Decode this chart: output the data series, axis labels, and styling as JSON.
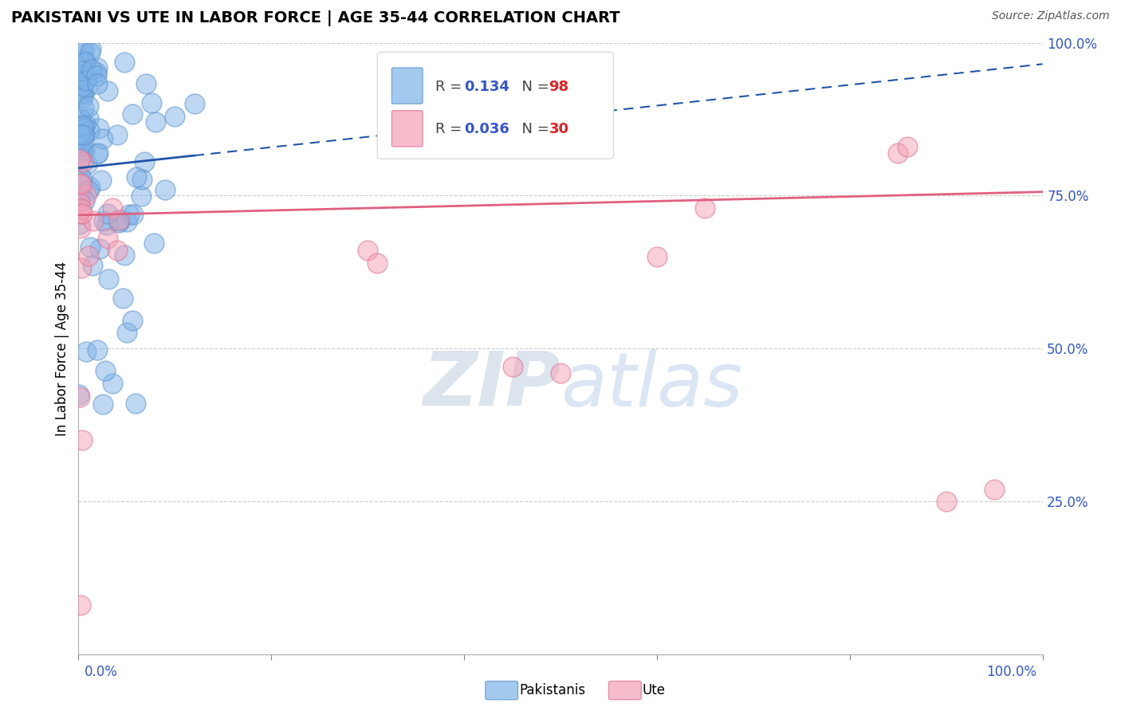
{
  "title": "PAKISTANI VS UTE IN LABOR FORCE | AGE 35-44 CORRELATION CHART",
  "source": "Source: ZipAtlas.com",
  "ylabel": "In Labor Force | Age 35-44",
  "ytick_labels": [
    "100.0%",
    "75.0%",
    "50.0%",
    "25.0%"
  ],
  "ytick_values": [
    1.0,
    0.75,
    0.5,
    0.25
  ],
  "xlim": [
    0.0,
    1.0
  ],
  "ylim": [
    0.0,
    1.0
  ],
  "blue_R": 0.134,
  "blue_N": 98,
  "pink_R": 0.036,
  "pink_N": 30,
  "blue_color": "#7EB3E8",
  "blue_edge_color": "#5A90CC",
  "pink_color": "#F4A0B5",
  "pink_edge_color": "#E07090",
  "blue_line_color": "#2255AA",
  "pink_line_color": "#E06080",
  "legend_label_blue": "Pakistanis",
  "legend_label_pink": "Ute",
  "watermark_color": "#C8D8EE",
  "grid_color": "#CCCCCC",
  "axis_label_color": "#3355CC",
  "blue_line_intercept": 0.795,
  "blue_line_slope": 0.17,
  "pink_line_intercept": 0.718,
  "pink_line_slope": 0.038
}
